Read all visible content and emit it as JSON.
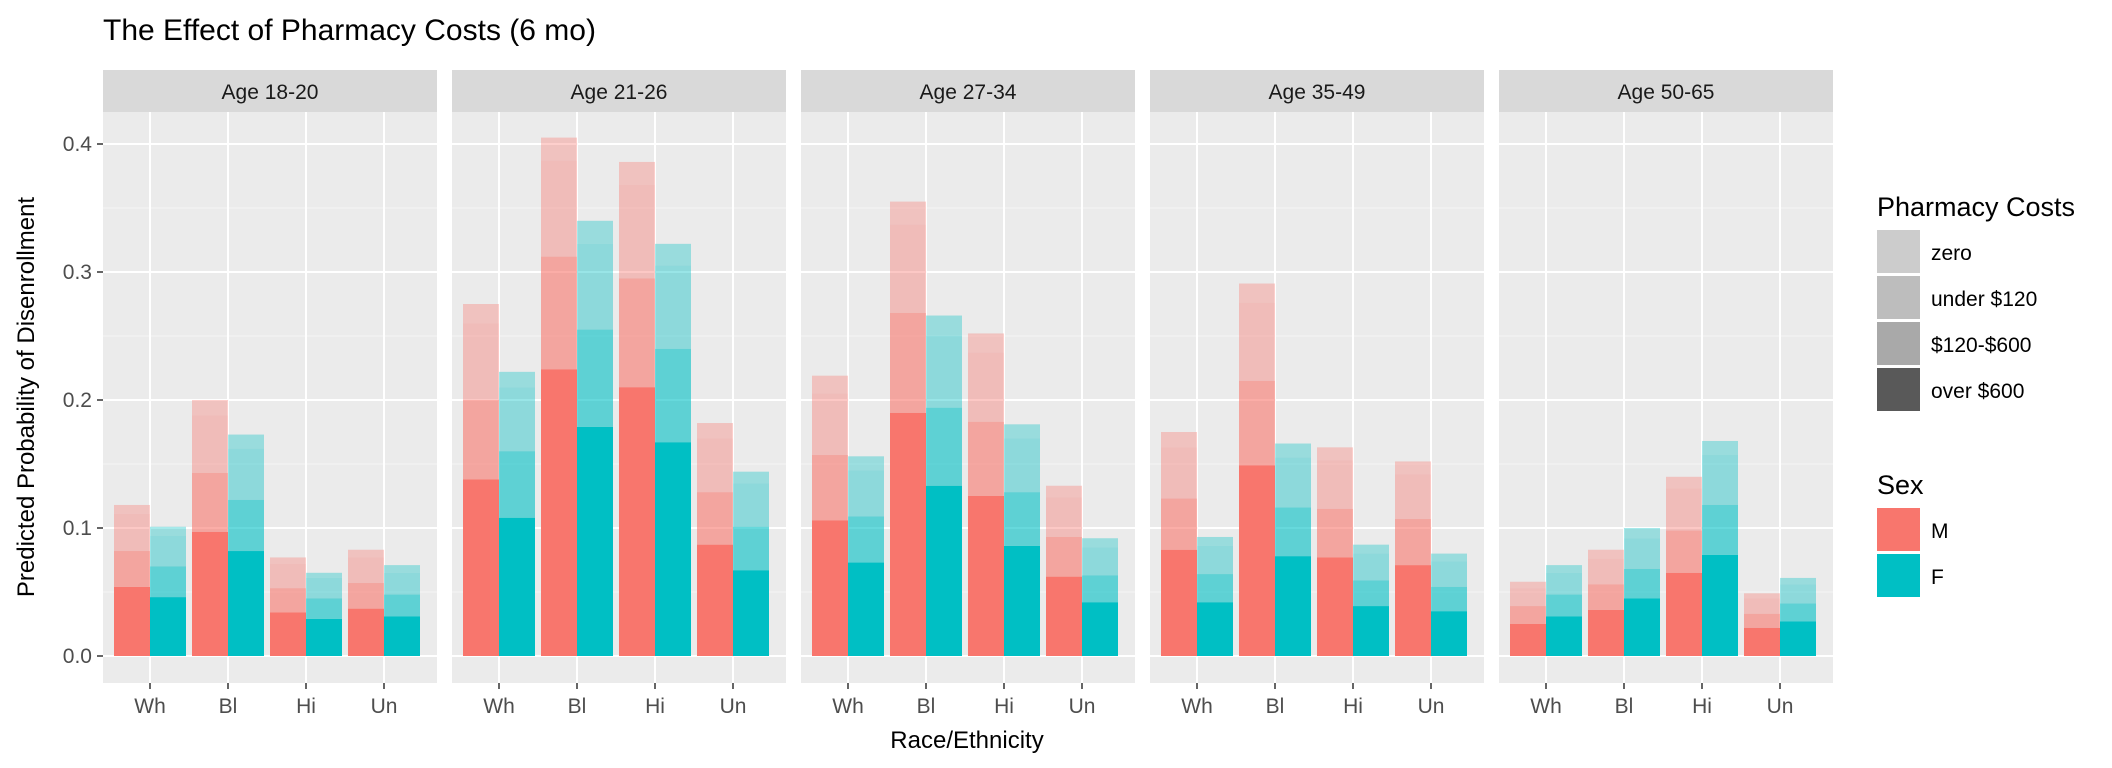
{
  "chart_data": {
    "type": "bar",
    "title": "The Effect of Pharmacy Costs (6 mo)",
    "xlabel": "Race/Ethnicity",
    "ylabel": "Predicted Probability of Disenrollment",
    "ylim": [
      0,
      0.42
    ],
    "y_ticks": [
      "0.0",
      "0.1",
      "0.2",
      "0.3",
      "0.4"
    ],
    "grid": true,
    "categories": [
      "Wh",
      "Bl",
      "Hi",
      "Un"
    ],
    "cost_levels": [
      "zero",
      "under $120",
      "$120-$600",
      "over $600"
    ],
    "sex_levels": [
      "M",
      "F"
    ],
    "colors": {
      "M": "#F8766D",
      "F": "#00BFC4",
      "panel_bg": "#EBEBEB",
      "strip_bg": "#D9D9D9"
    },
    "legend": {
      "placement": "right",
      "cost_title": "Pharmacy Costs",
      "cost_items": [
        "zero",
        "under $120",
        "$120-$600",
        "over $600"
      ],
      "cost_swatch_colors": [
        "#CCCCCC",
        "#BDBDBD",
        "#A9A9A9",
        "#595959"
      ],
      "sex_title": "Sex",
      "sex_items": [
        {
          "label": "M",
          "color": "#F8766D"
        },
        {
          "label": "F",
          "color": "#00BFC4"
        }
      ]
    },
    "note": "Stacked layers per bar are cumulative values for cost levels: over $600 (bottom), $120-$600, under $120, zero (top).",
    "panels": [
      {
        "label": "Age 18-20",
        "M": [
          [
            0.054,
            0.082,
            0.111,
            0.118
          ],
          [
            0.097,
            0.143,
            0.188,
            0.2
          ],
          [
            0.034,
            0.053,
            0.072,
            0.077
          ],
          [
            0.037,
            0.057,
            0.077,
            0.083
          ]
        ],
        "F": [
          [
            0.046,
            0.07,
            0.094,
            0.101
          ],
          [
            0.082,
            0.122,
            0.162,
            0.173
          ],
          [
            0.029,
            0.045,
            0.061,
            0.065
          ],
          [
            0.031,
            0.048,
            0.065,
            0.071
          ]
        ]
      },
      {
        "label": "Age 21-26",
        "M": [
          [
            0.138,
            0.2,
            0.26,
            0.275
          ],
          [
            0.224,
            0.312,
            0.387,
            0.405
          ],
          [
            0.21,
            0.295,
            0.368,
            0.386
          ],
          [
            0.087,
            0.128,
            0.17,
            0.182
          ]
        ],
        "F": [
          [
            0.108,
            0.16,
            0.21,
            0.222
          ],
          [
            0.179,
            0.255,
            0.322,
            0.34
          ],
          [
            0.167,
            0.24,
            0.305,
            0.322
          ],
          [
            0.067,
            0.101,
            0.135,
            0.144
          ]
        ]
      },
      {
        "label": "Age 27-34",
        "M": [
          [
            0.106,
            0.157,
            0.205,
            0.219
          ],
          [
            0.19,
            0.268,
            0.337,
            0.355
          ],
          [
            0.125,
            0.183,
            0.237,
            0.252
          ],
          [
            0.062,
            0.093,
            0.124,
            0.133
          ]
        ],
        "F": [
          [
            0.073,
            0.109,
            0.145,
            0.156
          ],
          [
            0.133,
            0.194,
            0.25,
            0.266
          ],
          [
            0.086,
            0.128,
            0.17,
            0.181
          ],
          [
            0.042,
            0.063,
            0.085,
            0.092
          ]
        ]
      },
      {
        "label": "Age 35-49",
        "M": [
          [
            0.083,
            0.123,
            0.163,
            0.175
          ],
          [
            0.149,
            0.215,
            0.276,
            0.291
          ],
          [
            0.077,
            0.115,
            0.153,
            0.163
          ],
          [
            0.071,
            0.107,
            0.142,
            0.152
          ]
        ],
        "F": [
          [
            0.042,
            0.064,
            0.086,
            0.093
          ],
          [
            0.078,
            0.116,
            0.155,
            0.166
          ],
          [
            0.039,
            0.059,
            0.08,
            0.087
          ],
          [
            0.035,
            0.054,
            0.074,
            0.08
          ]
        ]
      },
      {
        "label": "Age 50-65",
        "M": [
          [
            0.025,
            0.039,
            0.053,
            0.058
          ],
          [
            0.036,
            0.056,
            0.076,
            0.083
          ],
          [
            0.065,
            0.098,
            0.131,
            0.14
          ],
          [
            0.022,
            0.033,
            0.045,
            0.049
          ]
        ],
        "F": [
          [
            0.031,
            0.048,
            0.065,
            0.071
          ],
          [
            0.045,
            0.068,
            0.092,
            0.1
          ],
          [
            0.079,
            0.118,
            0.157,
            0.168
          ],
          [
            0.027,
            0.041,
            0.056,
            0.061
          ]
        ]
      }
    ]
  }
}
